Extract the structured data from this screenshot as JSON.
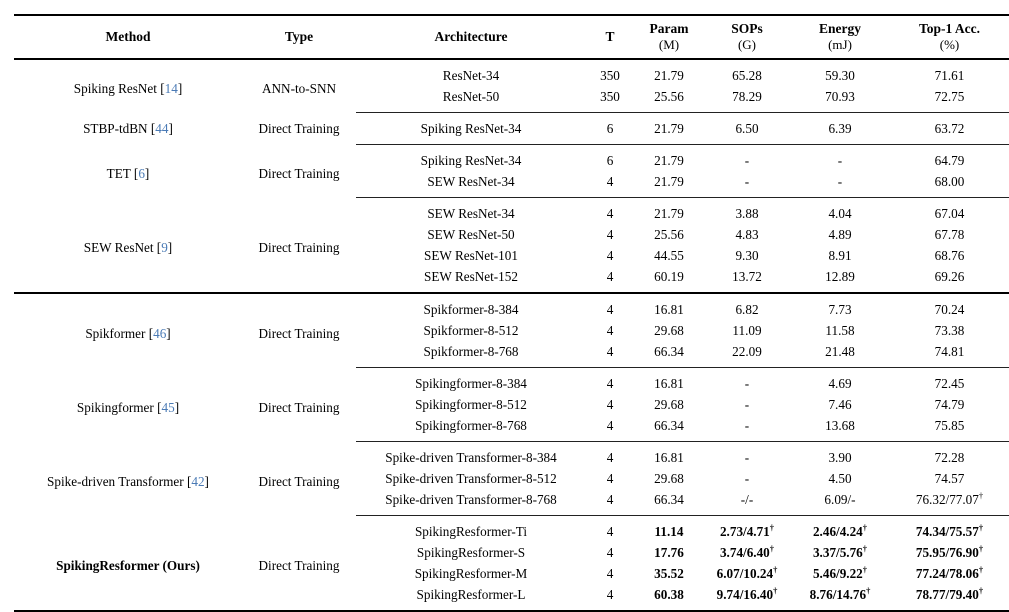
{
  "colors": {
    "citation_blue": "#4a7ab5",
    "text": "#000000",
    "rule": "#000000",
    "background": "#ffffff"
  },
  "header": {
    "columns": [
      {
        "label": "Method",
        "unit": ""
      },
      {
        "label": "Type",
        "unit": ""
      },
      {
        "label": "Architecture",
        "unit": ""
      },
      {
        "label": "T",
        "unit": ""
      },
      {
        "label": "Param",
        "unit": "(M)"
      },
      {
        "label": "SOPs",
        "unit": "(G)"
      },
      {
        "label": "Energy",
        "unit": "(mJ)"
      },
      {
        "label": "Top-1 Acc.",
        "unit": "(%)"
      }
    ]
  },
  "groups": [
    {
      "method": "Spiking ResNet",
      "citation": "14",
      "method_bold": false,
      "type": "ANN-to-SNN",
      "separator_above": "none",
      "rows": [
        {
          "arch": "ResNet-34",
          "t": "350",
          "param": "21.79",
          "sops": "65.28",
          "energy": "59.30",
          "acc": "71.61"
        },
        {
          "arch": "ResNet-50",
          "t": "350",
          "param": "25.56",
          "sops": "78.29",
          "energy": "70.93",
          "acc": "72.75"
        }
      ]
    },
    {
      "method": "STBP-tdBN",
      "citation": "44",
      "method_bold": false,
      "type": "Direct Training",
      "separator_above": "partial",
      "rows": [
        {
          "arch": "Spiking ResNet-34",
          "t": "6",
          "param": "21.79",
          "sops": "6.50",
          "energy": "6.39",
          "acc": "63.72"
        }
      ]
    },
    {
      "method": "TET",
      "citation": "6",
      "method_bold": false,
      "type": "Direct Training",
      "separator_above": "partial",
      "rows": [
        {
          "arch": "Spiking ResNet-34",
          "t": "6",
          "param": "21.79",
          "sops": "-",
          "energy": "-",
          "acc": "64.79"
        },
        {
          "arch": "SEW ResNet-34",
          "t": "4",
          "param": "21.79",
          "sops": "-",
          "energy": "-",
          "acc": "68.00"
        }
      ]
    },
    {
      "method": "SEW ResNet",
      "citation": "9",
      "method_bold": false,
      "type": "Direct Training",
      "separator_above": "partial",
      "rows": [
        {
          "arch": "SEW ResNet-34",
          "t": "4",
          "param": "21.79",
          "sops": "3.88",
          "energy": "4.04",
          "acc": "67.04"
        },
        {
          "arch": "SEW ResNet-50",
          "t": "4",
          "param": "25.56",
          "sops": "4.83",
          "energy": "4.89",
          "acc": "67.78"
        },
        {
          "arch": "SEW ResNet-101",
          "t": "4",
          "param": "44.55",
          "sops": "9.30",
          "energy": "8.91",
          "acc": "68.76"
        },
        {
          "arch": "SEW ResNet-152",
          "t": "4",
          "param": "60.19",
          "sops": "13.72",
          "energy": "12.89",
          "acc": "69.26"
        }
      ]
    },
    {
      "method": "Spikformer",
      "citation": "46",
      "method_bold": false,
      "type": "Direct Training",
      "separator_above": "full",
      "rows": [
        {
          "arch": "Spikformer-8-384",
          "t": "4",
          "param": "16.81",
          "sops": "6.82",
          "energy": "7.73",
          "acc": "70.24"
        },
        {
          "arch": "Spikformer-8-512",
          "t": "4",
          "param": "29.68",
          "sops": "11.09",
          "energy": "11.58",
          "acc": "73.38"
        },
        {
          "arch": "Spikformer-8-768",
          "t": "4",
          "param": "66.34",
          "sops": "22.09",
          "energy": "21.48",
          "acc": "74.81"
        }
      ]
    },
    {
      "method": "Spikingformer",
      "citation": "45",
      "method_bold": false,
      "type": "Direct Training",
      "separator_above": "partial",
      "rows": [
        {
          "arch": "Spikingformer-8-384",
          "t": "4",
          "param": "16.81",
          "sops": "-",
          "energy": "4.69",
          "acc": "72.45"
        },
        {
          "arch": "Spikingformer-8-512",
          "t": "4",
          "param": "29.68",
          "sops": "-",
          "energy": "7.46",
          "acc": "74.79"
        },
        {
          "arch": "Spikingformer-8-768",
          "t": "4",
          "param": "66.34",
          "sops": "-",
          "energy": "13.68",
          "acc": "75.85"
        }
      ]
    },
    {
      "method": "Spike-driven Transformer",
      "citation": "42",
      "method_bold": false,
      "type": "Direct Training",
      "separator_above": "partial",
      "rows": [
        {
          "arch": "Spike-driven Transformer-8-384",
          "t": "4",
          "param": "16.81",
          "sops": "-",
          "energy": "3.90",
          "acc": "72.28"
        },
        {
          "arch": "Spike-driven Transformer-8-512",
          "t": "4",
          "param": "29.68",
          "sops": "-",
          "energy": "4.50",
          "acc": "74.57"
        },
        {
          "arch": "Spike-driven Transformer-8-768",
          "t": "4",
          "param": "66.34",
          "sops": "-/-",
          "energy": "6.09/-",
          "acc": "76.32/77.07†"
        }
      ]
    },
    {
      "method": "SpikingResformer (Ours)",
      "citation": null,
      "method_bold": true,
      "type": "Direct Training",
      "separator_above": "partial",
      "rows": [
        {
          "arch": "SpikingResformer-Ti",
          "t": "4",
          "param": "11.14",
          "sops": "2.73/4.71†",
          "energy": "2.46/4.24†",
          "acc": "74.34/75.57†",
          "bold": true
        },
        {
          "arch": "SpikingResformer-S",
          "t": "4",
          "param": "17.76",
          "sops": "3.74/6.40†",
          "energy": "3.37/5.76†",
          "acc": "75.95/76.90†",
          "bold": true
        },
        {
          "arch": "SpikingResformer-M",
          "t": "4",
          "param": "35.52",
          "sops": "6.07/10.24†",
          "energy": "5.46/9.22†",
          "acc": "77.24/78.06†",
          "bold": true
        },
        {
          "arch": "SpikingResformer-L",
          "t": "4",
          "param": "60.38",
          "sops": "9.74/16.40†",
          "energy": "8.76/14.76†",
          "acc": "78.77/79.40†",
          "bold": true
        }
      ]
    }
  ]
}
